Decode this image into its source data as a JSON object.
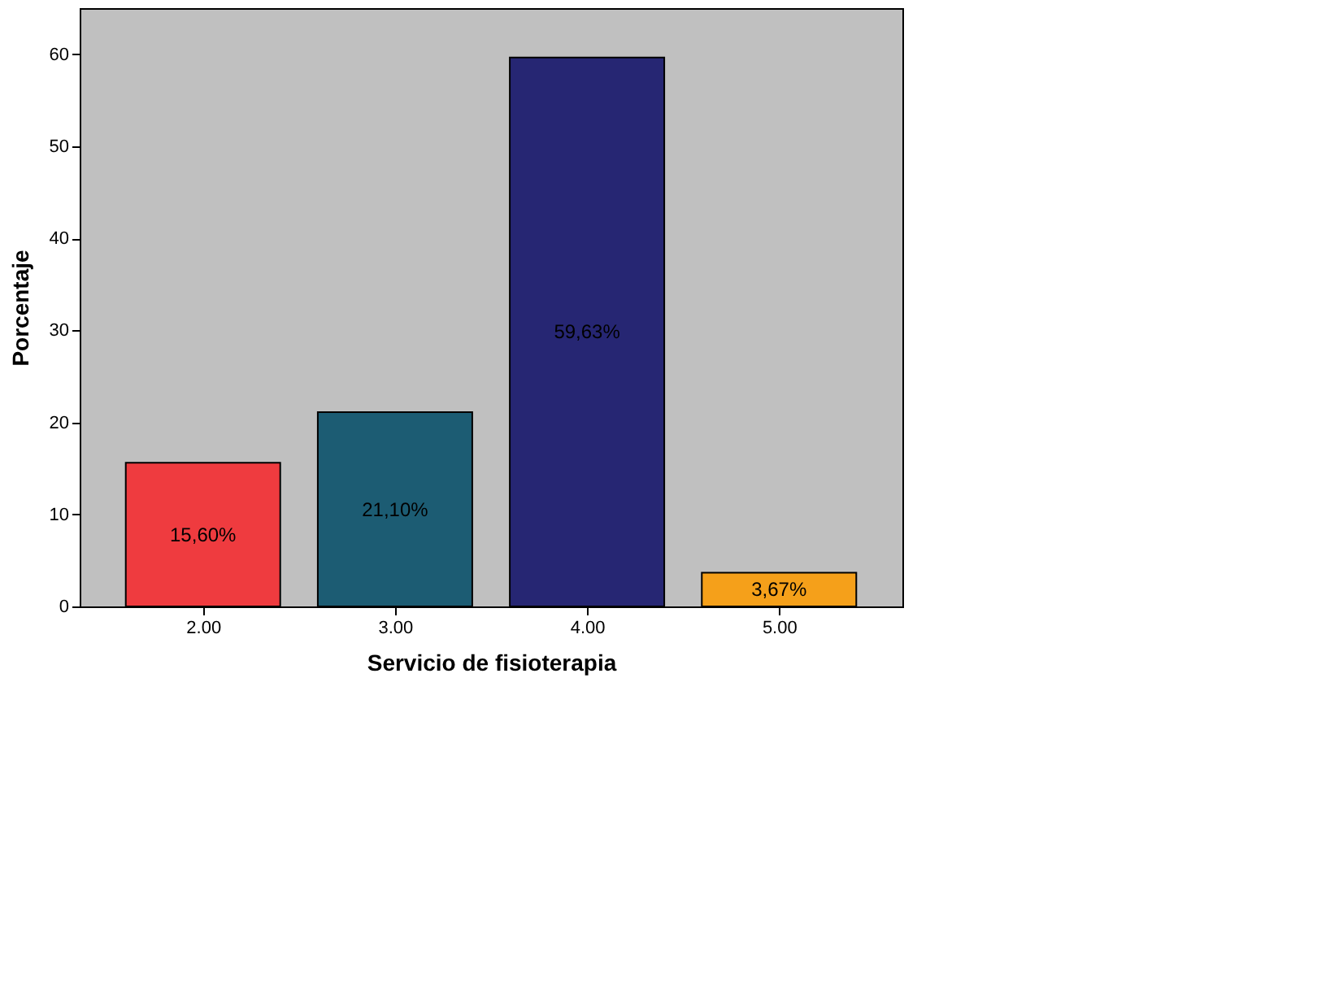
{
  "chart_data": {
    "type": "bar",
    "xlabel": "Servicio de fisioterapia",
    "ylabel": "Porcentaje",
    "categories": [
      "2.00",
      "3.00",
      "4.00",
      "5.00"
    ],
    "values": [
      15.6,
      21.1,
      59.63,
      3.67
    ],
    "colors": [
      "#ef3b3f",
      "#1c5c73",
      "#262673",
      "#f5a01a"
    ],
    "value_labels": [
      "15,60%",
      "21,10%",
      "59,63%",
      "3,67%"
    ],
    "ylim": [
      0,
      65
    ],
    "yticks": [
      0,
      10,
      20,
      30,
      40,
      50,
      60
    ],
    "grid": false
  }
}
